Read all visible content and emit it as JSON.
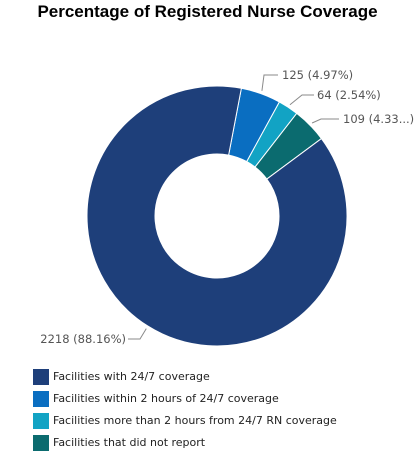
{
  "chart_data": {
    "type": "pie",
    "title": "Percentage of Registered Nurse Coverage",
    "donut": true,
    "slices": [
      {
        "name": "Facilities with 24/7 coverage",
        "value": 2218,
        "label": "2218 (88.16%)",
        "color": "#1e3f7a"
      },
      {
        "name": "Facilities within 2 hours of 24/7 coverage",
        "value": 125,
        "label": "125 (4.97%)",
        "color": "#0a6ec1"
      },
      {
        "name": "Facilities more than 2 hours from 24/7 RN coverage",
        "value": 64,
        "label": "64 (2.54%)",
        "color": "#12a3c4"
      },
      {
        "name": "Facilities that did not report",
        "value": 109,
        "label": "109 (4.33...)",
        "color": "#0b6b6f"
      }
    ],
    "legend_position": "bottom-left"
  }
}
